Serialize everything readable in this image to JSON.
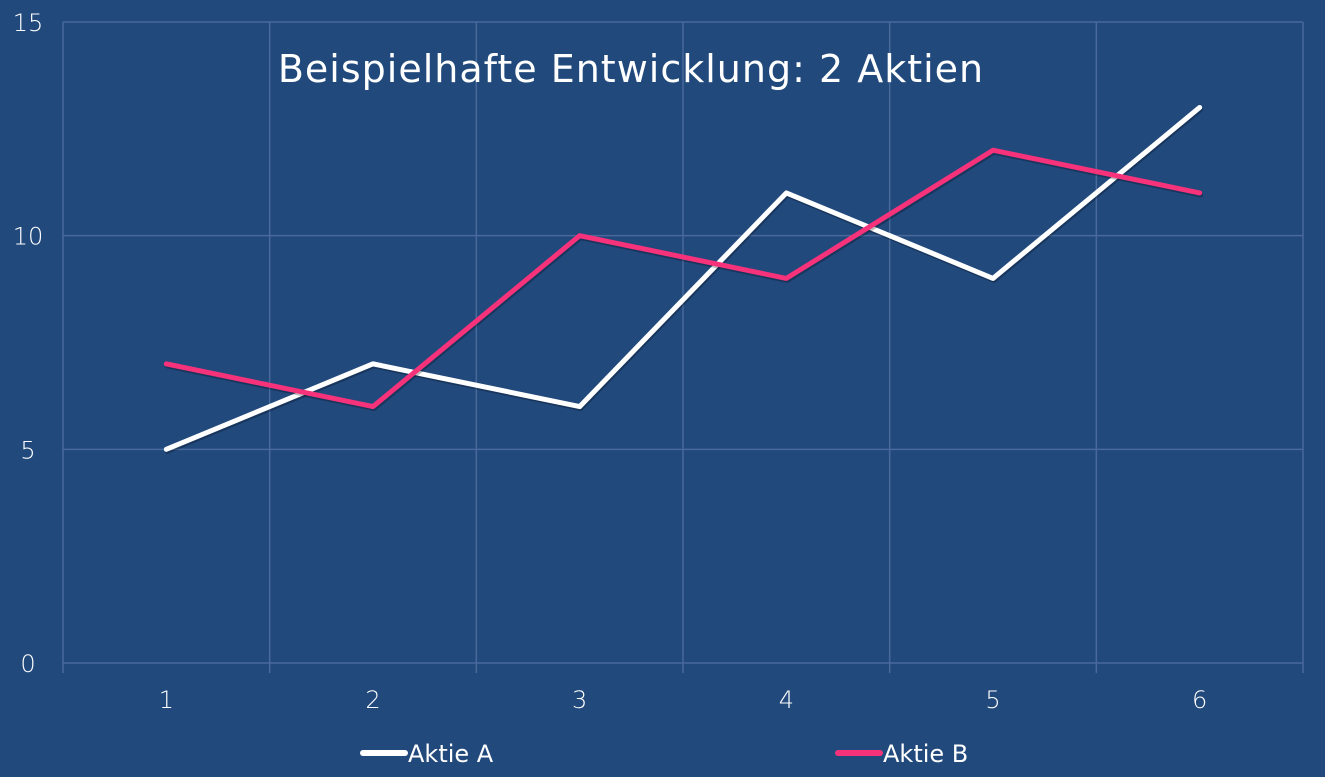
{
  "chart_data": {
    "type": "line",
    "title": "Beispielhafte Entwicklung: 2 Aktien",
    "xlabel": "",
    "ylabel": "",
    "categories": [
      "1",
      "2",
      "3",
      "4",
      "5",
      "6"
    ],
    "ylim": [
      0,
      15
    ],
    "yticks": [
      "0",
      "5",
      "10",
      "15"
    ],
    "grid": true,
    "legend_position": "bottom",
    "series": [
      {
        "name": "Aktie A",
        "color": "#ffffff",
        "values": [
          5,
          7,
          6,
          11,
          9,
          13
        ]
      },
      {
        "name": "Aktie B",
        "color": "#f5327a",
        "values": [
          7,
          6,
          10,
          9,
          12,
          11
        ]
      }
    ]
  }
}
